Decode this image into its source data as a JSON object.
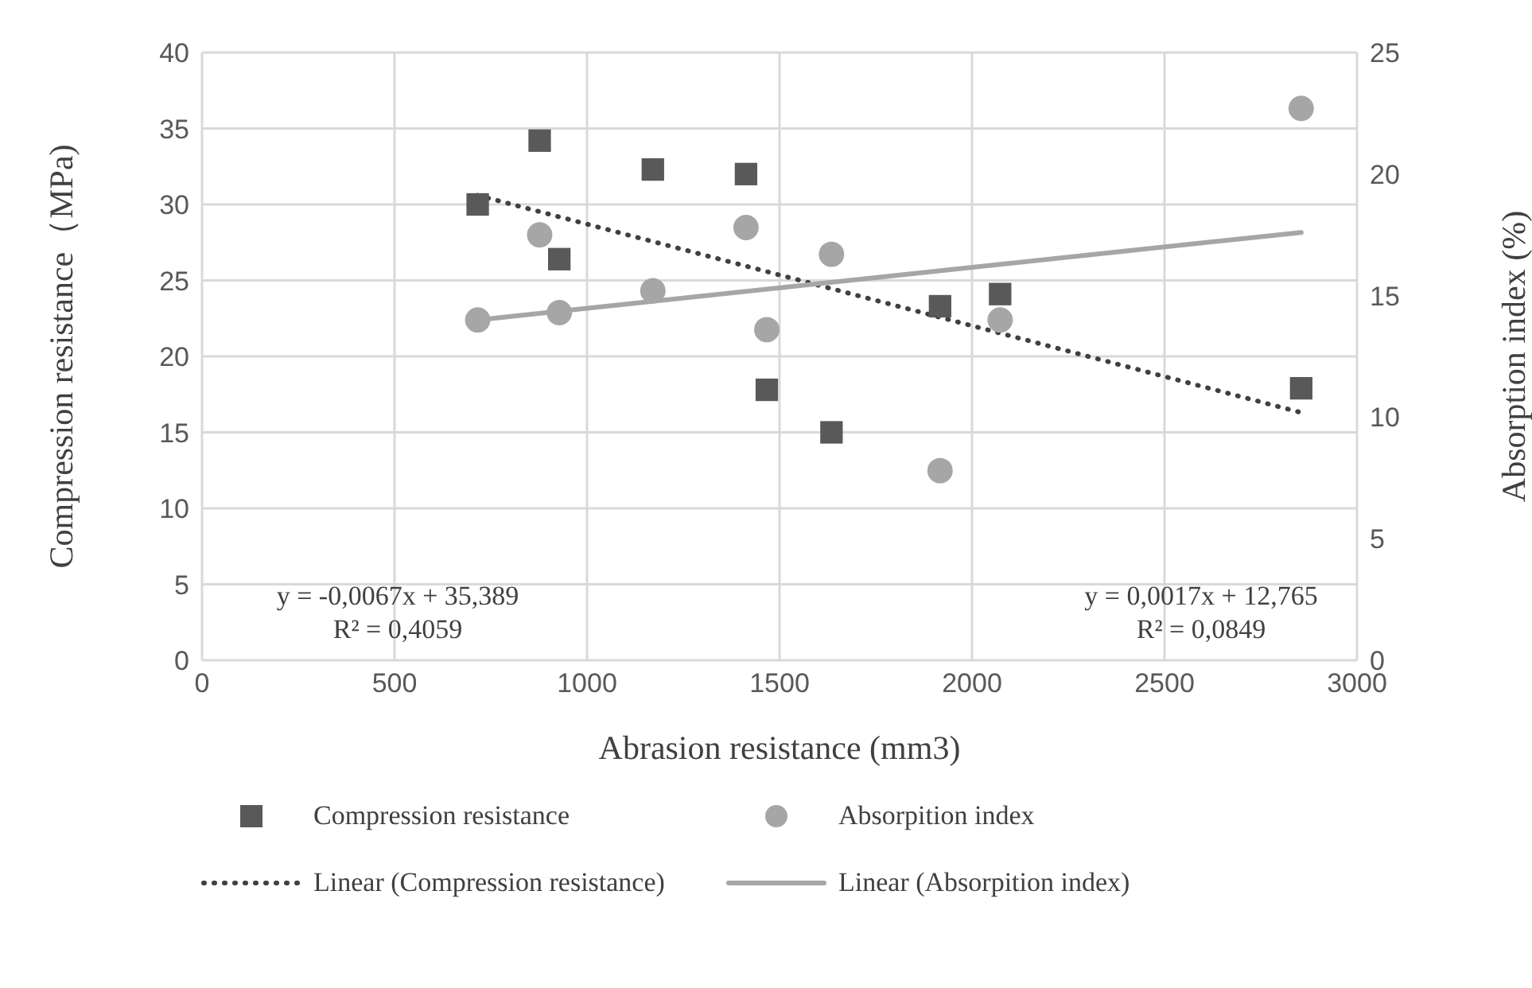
{
  "chart_data": {
    "type": "scatter",
    "xlabel": "Abrasion resistance (mm3)",
    "ylabel": "Compression resistance（MPa)",
    "y2label": "Absorption index (%)",
    "xlim": [
      0,
      3000
    ],
    "xticks": [
      0,
      500,
      1000,
      1500,
      2000,
      2500,
      3000
    ],
    "ylim": [
      0,
      40
    ],
    "yticks": [
      0,
      5,
      10,
      15,
      20,
      25,
      30,
      35,
      40
    ],
    "y2lim": [
      0,
      25
    ],
    "y2ticks": [
      0,
      5,
      10,
      15,
      20,
      25
    ],
    "grid": true,
    "legend": "bottom",
    "annotations": [
      "y = -0,0067x + 35,389\nR² = 0,4059",
      "y = 0,0017x + 12,765\nR² = 0,0849"
    ],
    "series": [
      {
        "name": "Compression resistance",
        "marker": "square",
        "color": "#595959",
        "x": [
          716,
          877,
          928,
          1171,
          1413,
          1467,
          1635,
          1917,
          2073,
          2855
        ],
        "values": [
          30.0,
          34.2,
          26.4,
          32.3,
          32.0,
          17.8,
          15.0,
          23.3,
          24.1,
          17.9
        ]
      },
      {
        "name": "Absorpition index",
        "marker": "circle",
        "color": "#a6a6a6",
        "axis": "y2",
        "x": [
          716,
          877,
          928,
          1171,
          1413,
          1467,
          1635,
          1917,
          2073,
          2855
        ],
        "values": [
          14.0,
          17.5,
          14.3,
          15.2,
          17.8,
          13.6,
          16.7,
          7.8,
          14.0,
          22.7
        ]
      },
      {
        "name": "Linear (Compression resistance)",
        "type": "line",
        "marker": "none",
        "line_style": "dotted",
        "color": "#404040",
        "x": [
          716,
          2855
        ],
        "values": [
          30.6,
          16.3
        ]
      },
      {
        "name": "Linear (Absorpition index)",
        "type": "line",
        "marker": "none",
        "line_style": "solid",
        "color": "#a6a6a6",
        "axis": "y2",
        "x": [
          716,
          2855
        ],
        "values": [
          14.0,
          17.6
        ]
      }
    ]
  }
}
